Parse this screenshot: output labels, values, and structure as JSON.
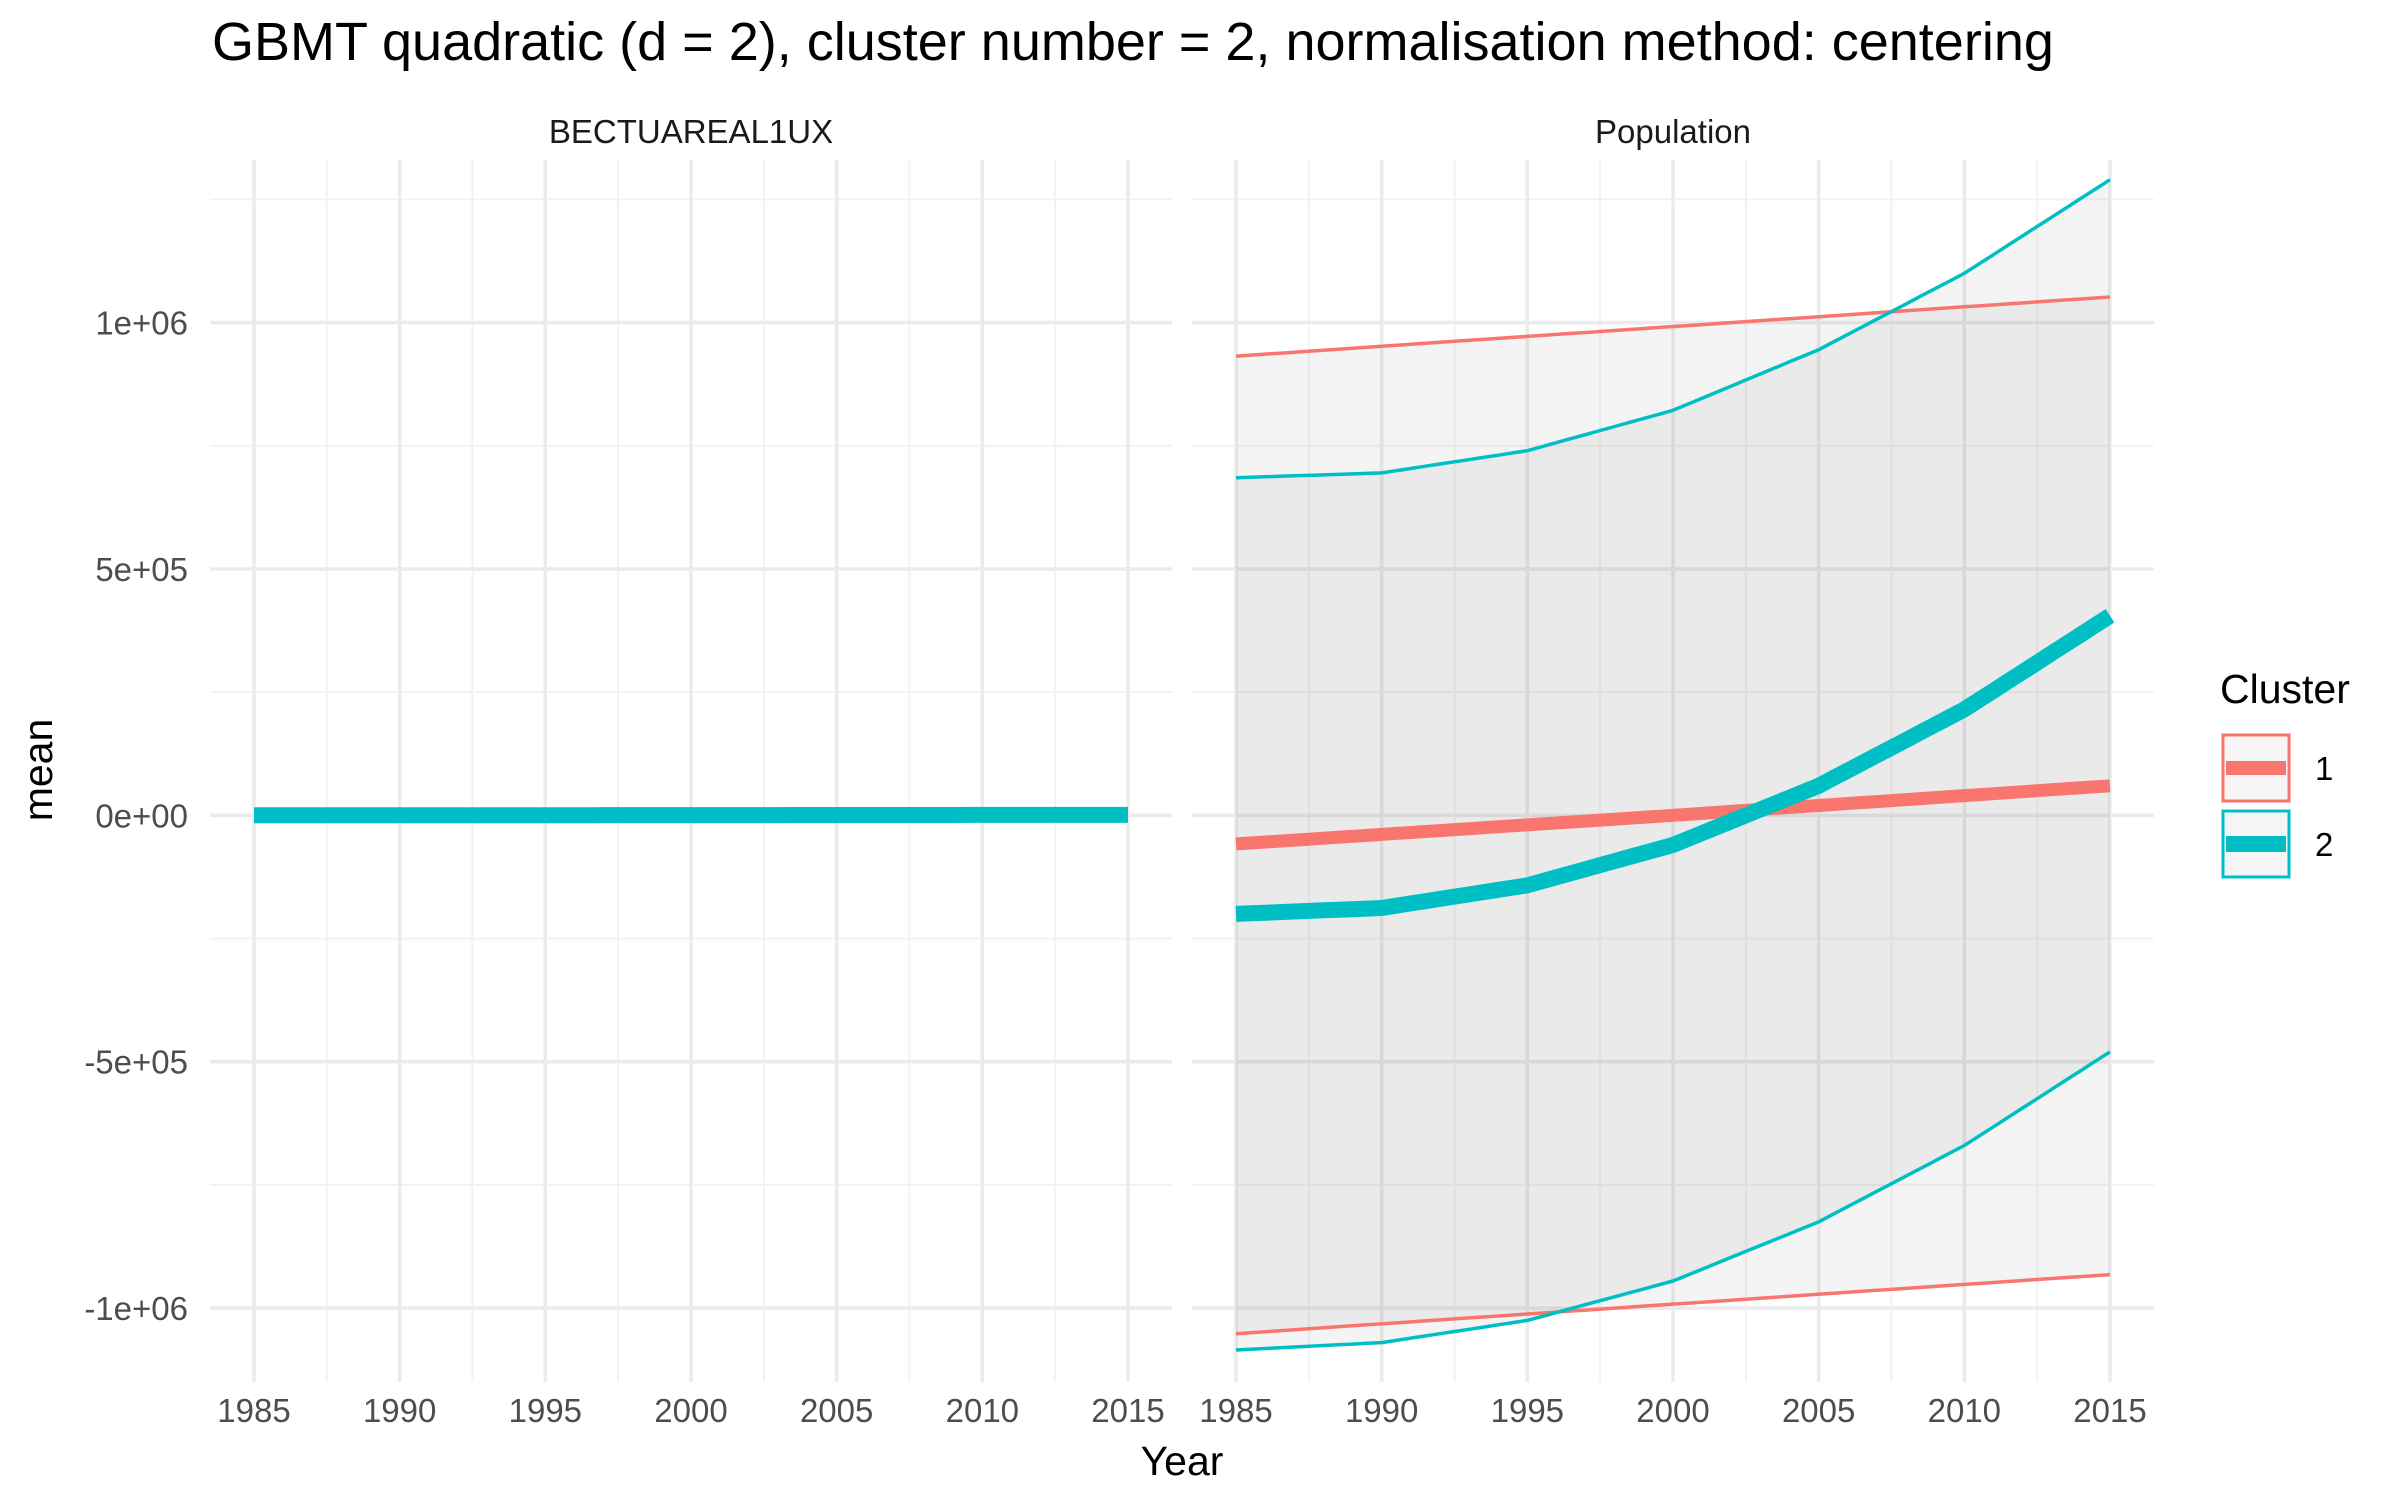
{
  "chart_data": {
    "type": "line",
    "title": "GBMT quadratic (d = 2), cluster number = 2, normalisation method: centering",
    "xlabel": "Year",
    "ylabel": "mean",
    "xlim": [
      1985,
      2015
    ],
    "ylim": [
      -1150000,
      1330000
    ],
    "x_ticks": [
      1985,
      1990,
      1995,
      2000,
      2005,
      2010,
      2015
    ],
    "x_tick_labels": [
      "1985",
      "1990",
      "1995",
      "2000",
      "2005",
      "2010",
      "2015"
    ],
    "y_ticks": [
      1000000,
      500000,
      0,
      -500000,
      -1000000
    ],
    "y_tick_labels": [
      "1e+06",
      "5e+05",
      "0e+00",
      "-5e+05",
      "-1e+06"
    ],
    "grid": true,
    "legend": {
      "title": "Cluster",
      "position": "right",
      "entries": [
        {
          "label": "1",
          "color": "#F8766D"
        },
        {
          "label": "2",
          "color": "#00BFC4"
        }
      ]
    },
    "panels": [
      {
        "name": "BECTUAREAL1UX",
        "series": [
          {
            "cluster": "2",
            "color": "#00BFC4",
            "role": "mean",
            "x": [
              1985,
              2015
            ],
            "values": [
              0,
              1000
            ]
          }
        ]
      },
      {
        "name": "Population",
        "series": [
          {
            "cluster": "1",
            "color": "#F8766D",
            "role": "mean",
            "x": [
              1985,
              2000,
              2015
            ],
            "values": [
              -58000,
              0,
              60000
            ]
          },
          {
            "cluster": "1",
            "color": "#F8766D",
            "role": "upper",
            "x": [
              1985,
              2000,
              2015
            ],
            "values": [
              932000,
              992000,
              1052000
            ]
          },
          {
            "cluster": "1",
            "color": "#F8766D",
            "role": "lower",
            "x": [
              1985,
              2000,
              2015
            ],
            "values": [
              -1052000,
              -992000,
              -932000
            ]
          },
          {
            "cluster": "2",
            "color": "#00BFC4",
            "role": "mean",
            "x": [
              1985,
              1990,
              1995,
              2000,
              2005,
              2010,
              2015
            ],
            "values": [
              -200000,
              -188000,
              -142000,
              -60000,
              60000,
              215000,
              405000
            ]
          },
          {
            "cluster": "2",
            "color": "#00BFC4",
            "role": "upper",
            "x": [
              1985,
              1990,
              1995,
              2000,
              2005,
              2010,
              2015
            ],
            "values": [
              685000,
              695000,
              740000,
              822000,
              945000,
              1100000,
              1290000
            ]
          },
          {
            "cluster": "2",
            "color": "#00BFC4",
            "role": "lower",
            "x": [
              1985,
              1990,
              1995,
              2000,
              2005,
              2010,
              2015
            ],
            "values": [
              -1085000,
              -1070000,
              -1025000,
              -945000,
              -825000,
              -670000,
              -480000
            ]
          }
        ]
      }
    ]
  }
}
